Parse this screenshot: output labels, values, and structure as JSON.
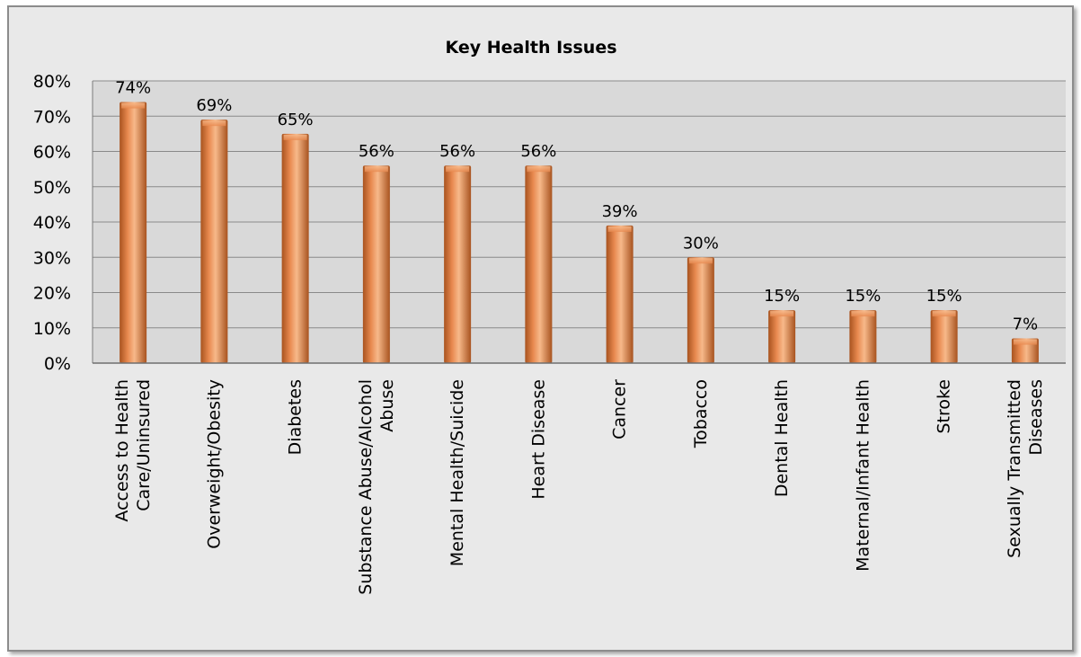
{
  "chart_data": {
    "type": "bar",
    "title": "Key Health Issues",
    "xlabel": "",
    "ylabel": "",
    "categories": [
      "Access to Health Care/Uninsured",
      "Overweight/Obesity",
      "Diabetes",
      "Substance Abuse/Alcohol Abuse",
      "Mental Health/Suicide",
      "Heart Disease",
      "Cancer",
      "Tobacco",
      "Dental Health",
      "Maternal/Infant Health",
      "Stroke",
      "Sexually Transmitted Diseases"
    ],
    "category_lines": [
      [
        "Access to Health",
        "Care/Uninsured"
      ],
      [
        "Overweight/Obesity"
      ],
      [
        "Diabetes"
      ],
      [
        "Substance Abuse/Alcohol",
        "Abuse"
      ],
      [
        "Mental Health/Suicide"
      ],
      [
        "Heart Disease"
      ],
      [
        "Cancer"
      ],
      [
        "Tobacco"
      ],
      [
        "Dental Health"
      ],
      [
        "Maternal/Infant Health"
      ],
      [
        "Stroke"
      ],
      [
        "Sexually Transmitted",
        "Diseases"
      ]
    ],
    "values": [
      74,
      69,
      65,
      56,
      56,
      56,
      39,
      30,
      15,
      15,
      15,
      7
    ],
    "data_labels": [
      "74%",
      "69%",
      "65%",
      "56%",
      "56%",
      "56%",
      "39%",
      "30%",
      "15%",
      "15%",
      "15%",
      "7%"
    ],
    "ylim": [
      0,
      80
    ],
    "y_ticks": [
      0,
      10,
      20,
      30,
      40,
      50,
      60,
      70,
      80
    ],
    "y_tick_labels": [
      "0%",
      "10%",
      "20%",
      "30%",
      "40%",
      "50%",
      "60%",
      "70%",
      "80%"
    ],
    "grid": true,
    "legend": "none",
    "colors": {
      "bar": "#e8894f",
      "bar_dark": "#a8531f",
      "bar_light": "#f7b98a",
      "plot_background": "#d9d9d9",
      "frame_background": "#e9e9e9"
    }
  }
}
